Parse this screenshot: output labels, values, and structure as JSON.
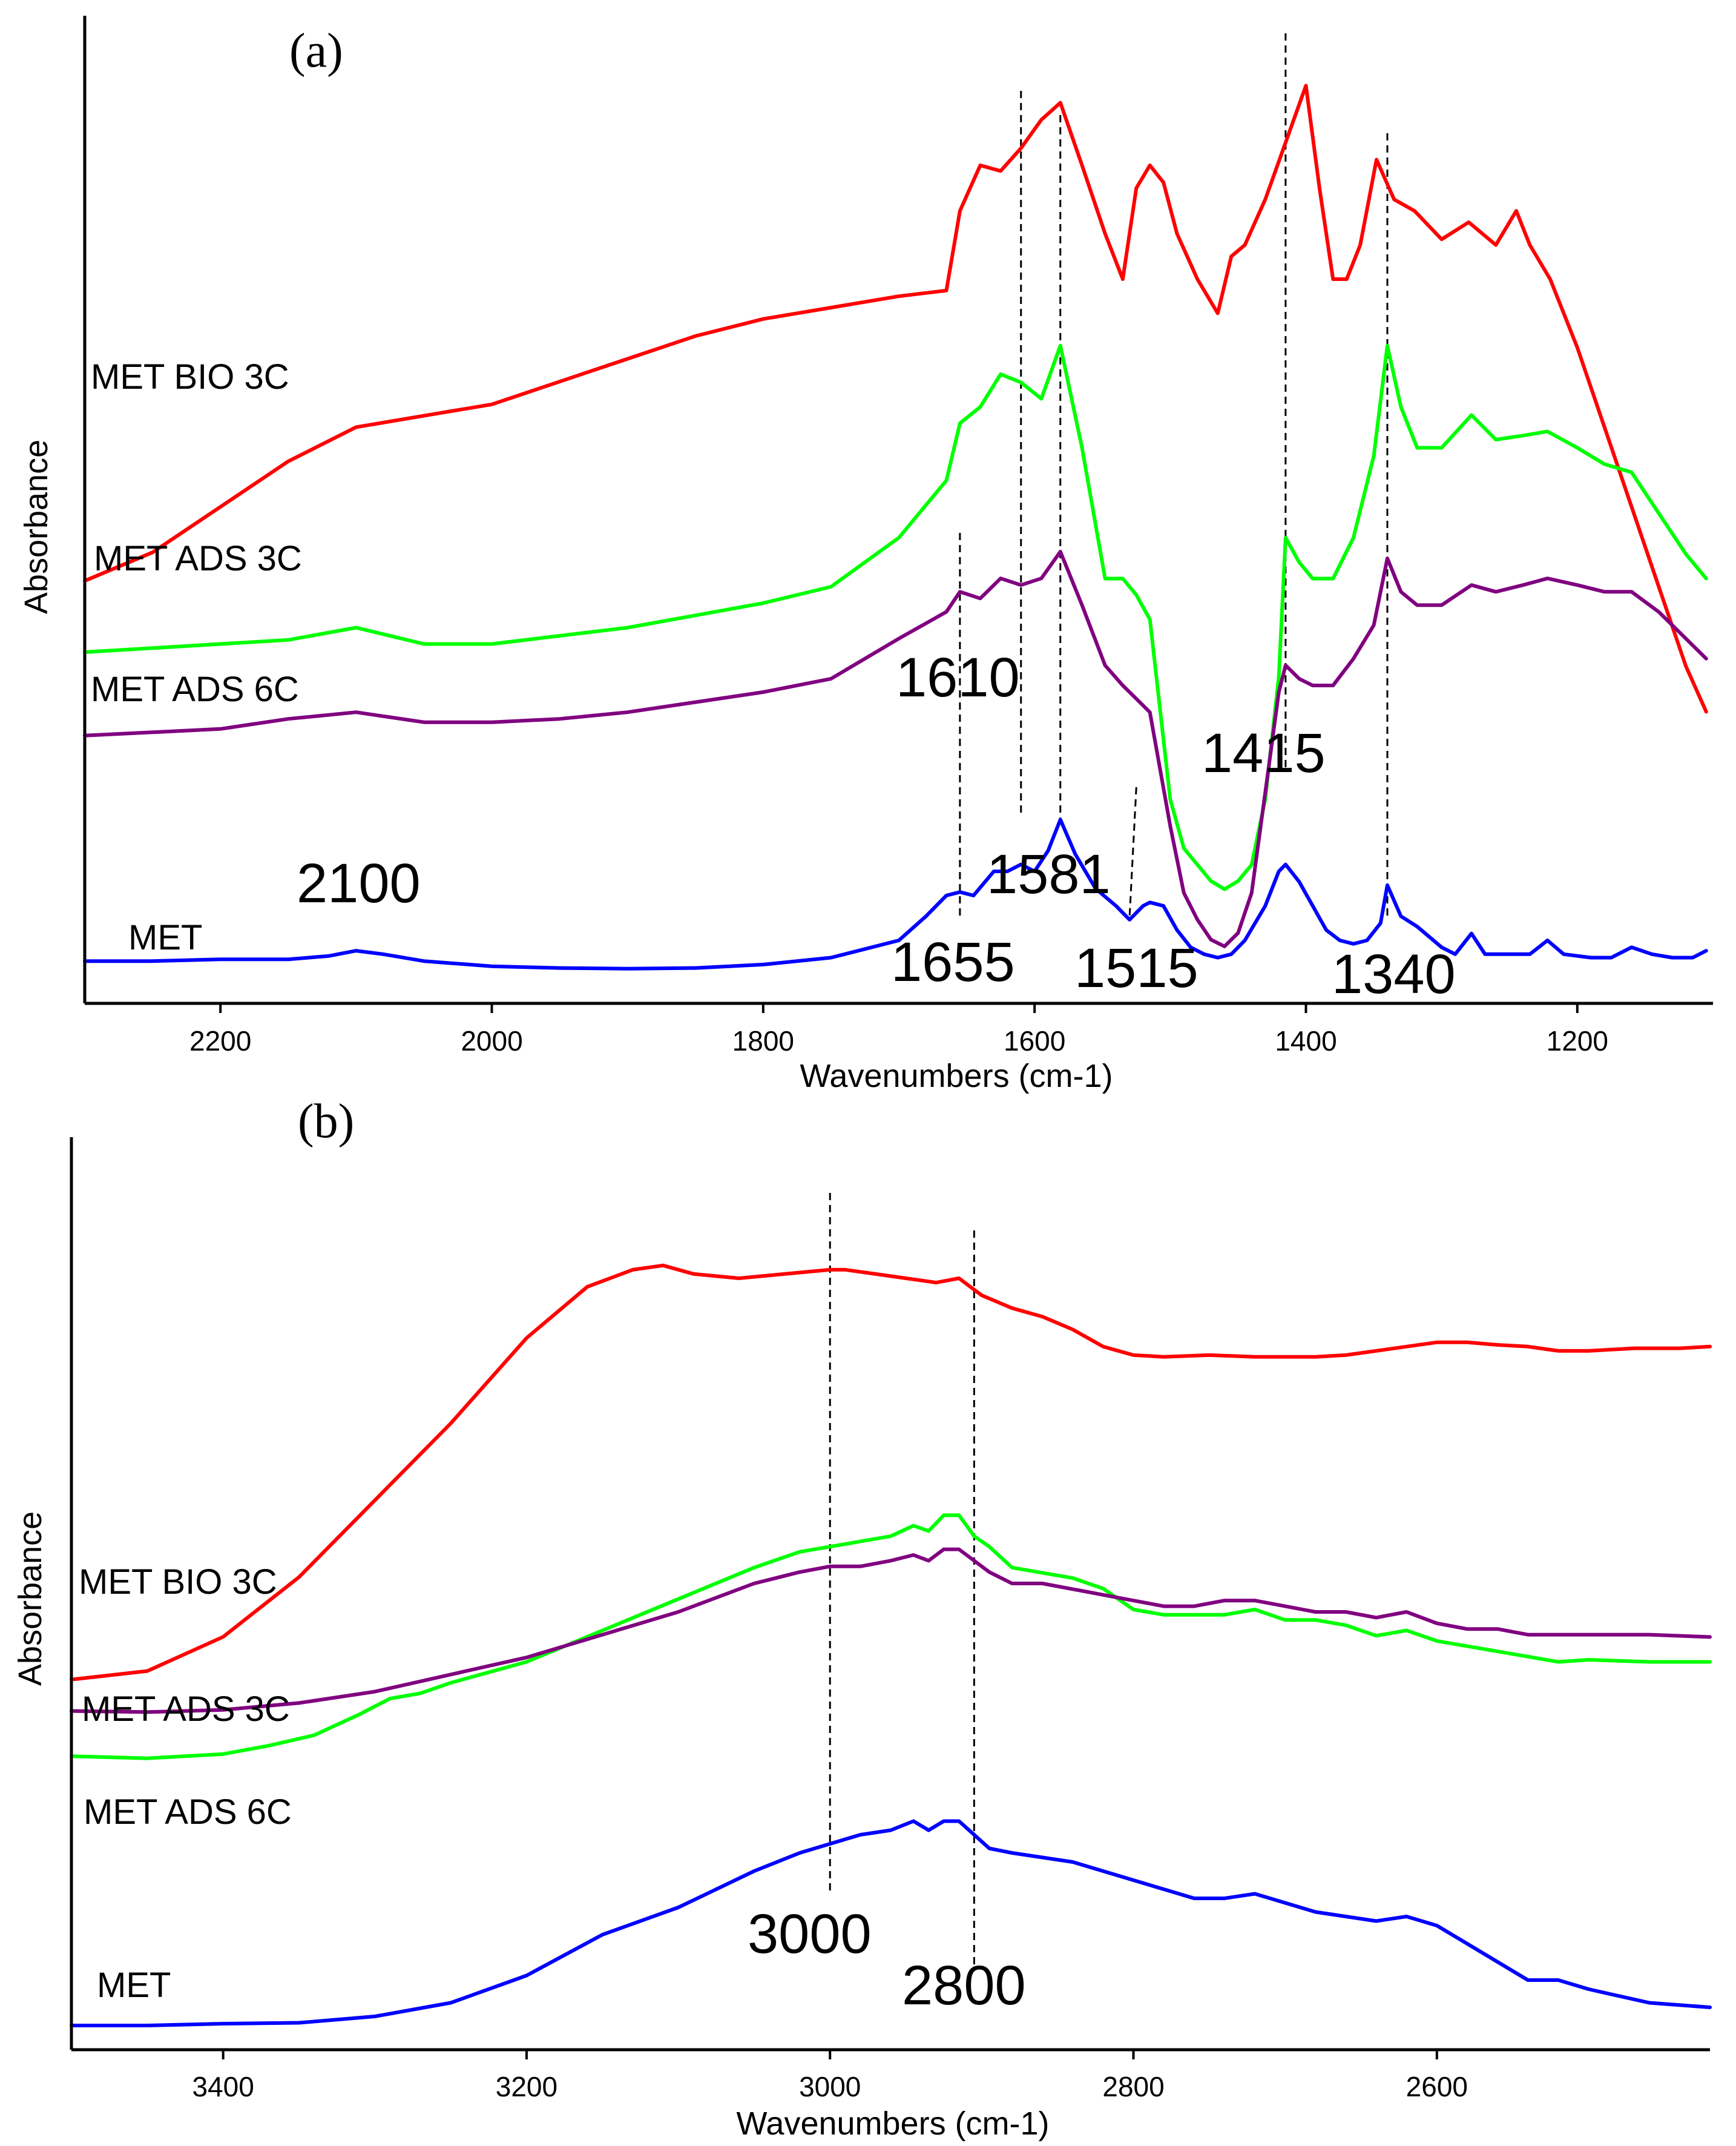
{
  "chart_data": [
    {
      "type": "line",
      "panel_label": "(a)",
      "xlabel": "Wavenumbers (cm-1)",
      "ylabel": "Absorbance",
      "xlim": [
        2300,
        1100
      ],
      "ylim": [
        0,
        1
      ],
      "x_ticks": [
        2200,
        2000,
        1800,
        1600,
        1400,
        1200
      ],
      "series": [
        {
          "name": "MET BIO 3C",
          "color": "#ff0000",
          "x": [
            2300,
            2250,
            2200,
            2150,
            2100,
            2050,
            2000,
            1950,
            1900,
            1850,
            1800,
            1750,
            1700,
            1665,
            1655,
            1640,
            1625,
            1610,
            1595,
            1581,
            1565,
            1548,
            1535,
            1525,
            1515,
            1505,
            1495,
            1480,
            1465,
            1455,
            1445,
            1430,
            1415,
            1400,
            1390,
            1380,
            1370,
            1360,
            1348,
            1335,
            1320,
            1300,
            1280,
            1260,
            1245,
            1235,
            1220,
            1200,
            1180,
            1160,
            1140,
            1120,
            1105
          ],
          "values": [
            0.535,
            0.56,
            0.6,
            0.64,
            0.67,
            0.68,
            0.69,
            0.71,
            0.73,
            0.75,
            0.765,
            0.775,
            0.785,
            0.79,
            0.86,
            0.9,
            0.895,
            0.915,
            0.94,
            0.955,
            0.9,
            0.84,
            0.8,
            0.88,
            0.9,
            0.885,
            0.84,
            0.8,
            0.77,
            0.82,
            0.83,
            0.87,
            0.92,
            0.97,
            0.88,
            0.8,
            0.8,
            0.83,
            0.905,
            0.87,
            0.86,
            0.835,
            0.85,
            0.83,
            0.86,
            0.83,
            0.8,
            0.74,
            0.67,
            0.6,
            0.53,
            0.46,
            0.42
          ]
        },
        {
          "name": "MET ADS 3C",
          "color": "#00ff00",
          "x": [
            2300,
            2250,
            2200,
            2150,
            2100,
            2050,
            2000,
            1950,
            1900,
            1850,
            1800,
            1750,
            1700,
            1665,
            1655,
            1640,
            1625,
            1610,
            1595,
            1581,
            1565,
            1548,
            1535,
            1525,
            1515,
            1500,
            1490,
            1480,
            1470,
            1460,
            1450,
            1440,
            1430,
            1420,
            1415,
            1405,
            1395,
            1380,
            1365,
            1350,
            1340,
            1330,
            1318,
            1300,
            1278,
            1260,
            1240,
            1222,
            1200,
            1180,
            1160,
            1140,
            1120,
            1105
          ],
          "values": [
            0.38,
            0.385,
            0.39,
            0.395,
            0.41,
            0.39,
            0.39,
            0.4,
            0.41,
            0.425,
            0.44,
            0.46,
            0.52,
            0.59,
            0.66,
            0.68,
            0.72,
            0.71,
            0.69,
            0.755,
            0.63,
            0.47,
            0.47,
            0.45,
            0.42,
            0.2,
            0.14,
            0.12,
            0.1,
            0.09,
            0.1,
            0.12,
            0.2,
            0.35,
            0.52,
            0.49,
            0.47,
            0.47,
            0.52,
            0.62,
            0.755,
            0.68,
            0.63,
            0.63,
            0.67,
            0.64,
            0.645,
            0.65,
            0.63,
            0.61,
            0.6,
            0.55,
            0.5,
            0.47
          ]
        },
        {
          "name": "MET ADS 6C",
          "color": "#800080",
          "x": [
            2300,
            2250,
            2200,
            2150,
            2100,
            2050,
            2000,
            1950,
            1900,
            1850,
            1800,
            1750,
            1700,
            1665,
            1655,
            1640,
            1625,
            1610,
            1595,
            1581,
            1565,
            1548,
            1535,
            1525,
            1515,
            1500,
            1490,
            1480,
            1470,
            1460,
            1450,
            1440,
            1430,
            1420,
            1415,
            1405,
            1395,
            1380,
            1365,
            1350,
            1340,
            1330,
            1318,
            1300,
            1278,
            1260,
            1240,
            1222,
            1200,
            1180,
            1160,
            1140,
            1120,
            1105
          ],
          "values": [
            0.335,
            0.34,
            0.345,
            0.36,
            0.37,
            0.355,
            0.355,
            0.36,
            0.37,
            0.385,
            0.4,
            0.42,
            0.48,
            0.52,
            0.55,
            0.54,
            0.57,
            0.56,
            0.57,
            0.61,
            0.53,
            0.44,
            0.41,
            0.39,
            0.37,
            0.2,
            0.1,
            0.06,
            0.03,
            0.02,
            0.04,
            0.1,
            0.25,
            0.4,
            0.44,
            0.42,
            0.41,
            0.41,
            0.45,
            0.5,
            0.6,
            0.55,
            0.53,
            0.53,
            0.56,
            0.55,
            0.56,
            0.57,
            0.56,
            0.55,
            0.55,
            0.52,
            0.48,
            0.45
          ]
        },
        {
          "name": "MET",
          "color": "#0000ff",
          "x": [
            2300,
            2250,
            2200,
            2150,
            2120,
            2100,
            2080,
            2050,
            2000,
            1950,
            1900,
            1850,
            1800,
            1750,
            1700,
            1680,
            1665,
            1655,
            1645,
            1630,
            1620,
            1610,
            1600,
            1590,
            1581,
            1570,
            1555,
            1540,
            1530,
            1520,
            1515,
            1505,
            1495,
            1485,
            1475,
            1465,
            1455,
            1445,
            1430,
            1420,
            1415,
            1405,
            1395,
            1385,
            1375,
            1365,
            1355,
            1345,
            1340,
            1330,
            1318,
            1300,
            1290,
            1278,
            1268,
            1250,
            1235,
            1222,
            1210,
            1190,
            1175,
            1160,
            1145,
            1130,
            1115,
            1105
          ],
          "values": [
            0.04,
            0.04,
            0.045,
            0.045,
            0.055,
            0.07,
            0.06,
            0.04,
            0.025,
            0.02,
            0.018,
            0.02,
            0.03,
            0.05,
            0.1,
            0.17,
            0.23,
            0.24,
            0.23,
            0.3,
            0.3,
            0.32,
            0.3,
            0.36,
            0.45,
            0.35,
            0.25,
            0.2,
            0.16,
            0.2,
            0.21,
            0.2,
            0.13,
            0.08,
            0.06,
            0.05,
            0.06,
            0.1,
            0.2,
            0.3,
            0.32,
            0.27,
            0.2,
            0.13,
            0.1,
            0.09,
            0.1,
            0.15,
            0.26,
            0.17,
            0.14,
            0.08,
            0.06,
            0.12,
            0.06,
            0.06,
            0.06,
            0.1,
            0.06,
            0.05,
            0.05,
            0.08,
            0.06,
            0.05,
            0.05,
            0.07
          ]
        }
      ],
      "annotations": [
        {
          "text": "2100",
          "x": 2100
        },
        {
          "text": "1610",
          "x": 1610
        },
        {
          "text": "1655",
          "x": 1655
        },
        {
          "text": "1581",
          "x": 1581
        },
        {
          "text": "1515",
          "x": 1515
        },
        {
          "text": "1415",
          "x": 1415
        },
        {
          "text": "1340",
          "x": 1340
        }
      ],
      "guide_lines": [
        1655,
        1610,
        1581,
        1515,
        1415,
        1340
      ]
    },
    {
      "type": "line",
      "panel_label": "(b)",
      "xlabel": "Wavenumbers (cm-1)",
      "ylabel": "Absorbance",
      "xlim": [
        3500,
        2420
      ],
      "ylim": [
        0,
        1
      ],
      "x_ticks": [
        3400,
        3200,
        3000,
        2800,
        2600
      ],
      "series": [
        {
          "name": "MET BIO 3C",
          "color": "#ff0000",
          "x": [
            3500,
            3450,
            3400,
            3350,
            3300,
            3250,
            3200,
            3160,
            3130,
            3110,
            3090,
            3060,
            3030,
            3000,
            2990,
            2970,
            2950,
            2930,
            2915,
            2900,
            2880,
            2860,
            2840,
            2820,
            2800,
            2780,
            2750,
            2720,
            2700,
            2680,
            2660,
            2640,
            2620,
            2600,
            2580,
            2560,
            2540,
            2520,
            2500,
            2470,
            2440,
            2420
          ],
          "values": [
            0.43,
            0.44,
            0.48,
            0.55,
            0.64,
            0.73,
            0.83,
            0.89,
            0.91,
            0.915,
            0.905,
            0.9,
            0.905,
            0.91,
            0.91,
            0.905,
            0.9,
            0.895,
            0.9,
            0.88,
            0.865,
            0.855,
            0.84,
            0.82,
            0.81,
            0.808,
            0.81,
            0.808,
            0.808,
            0.808,
            0.81,
            0.815,
            0.82,
            0.825,
            0.825,
            0.822,
            0.82,
            0.815,
            0.815,
            0.818,
            0.818,
            0.82
          ]
        },
        {
          "name": "MET ADS 3C",
          "color": "#00ff00",
          "x": [
            3500,
            3450,
            3400,
            3370,
            3340,
            3310,
            3290,
            3270,
            3250,
            3200,
            3150,
            3100,
            3050,
            3020,
            3000,
            2980,
            2960,
            2945,
            2935,
            2925,
            2915,
            2905,
            2895,
            2880,
            2860,
            2840,
            2820,
            2800,
            2780,
            2760,
            2740,
            2720,
            2700,
            2680,
            2660,
            2640,
            2620,
            2600,
            2580,
            2560,
            2540,
            2520,
            2500,
            2460,
            2420
          ],
          "values": [
            0.26,
            0.258,
            0.262,
            0.27,
            0.28,
            0.3,
            0.315,
            0.32,
            0.33,
            0.35,
            0.38,
            0.41,
            0.44,
            0.455,
            0.46,
            0.465,
            0.47,
            0.48,
            0.475,
            0.49,
            0.49,
            0.47,
            0.46,
            0.44,
            0.435,
            0.43,
            0.42,
            0.4,
            0.395,
            0.395,
            0.395,
            0.4,
            0.39,
            0.39,
            0.385,
            0.375,
            0.38,
            0.37,
            0.365,
            0.36,
            0.355,
            0.35,
            0.352,
            0.35,
            0.35
          ]
        },
        {
          "name": "MET ADS 6C",
          "color": "#800080",
          "x": [
            3500,
            3450,
            3400,
            3350,
            3300,
            3250,
            3200,
            3150,
            3100,
            3050,
            3020,
            3000,
            2980,
            2960,
            2945,
            2935,
            2925,
            2915,
            2905,
            2895,
            2880,
            2860,
            2840,
            2820,
            2800,
            2780,
            2760,
            2740,
            2720,
            2700,
            2680,
            2660,
            2640,
            2620,
            2600,
            2580,
            2560,
            2540,
            2520,
            2500,
            2460,
            2420
          ],
          "values": [
            0.263,
            0.262,
            0.264,
            0.27,
            0.28,
            0.295,
            0.31,
            0.33,
            0.35,
            0.375,
            0.385,
            0.39,
            0.39,
            0.395,
            0.4,
            0.395,
            0.405,
            0.405,
            0.395,
            0.385,
            0.375,
            0.375,
            0.37,
            0.365,
            0.36,
            0.355,
            0.355,
            0.36,
            0.36,
            0.355,
            0.35,
            0.35,
            0.345,
            0.35,
            0.34,
            0.335,
            0.335,
            0.33,
            0.33,
            0.33,
            0.33,
            0.328
          ]
        },
        {
          "name": "MET",
          "color": "#0000ff",
          "x": [
            3500,
            3450,
            3400,
            3350,
            3300,
            3250,
            3200,
            3150,
            3100,
            3050,
            3020,
            3000,
            2980,
            2960,
            2945,
            2935,
            2925,
            2915,
            2905,
            2895,
            2880,
            2860,
            2840,
            2820,
            2800,
            2780,
            2760,
            2740,
            2720,
            2700,
            2680,
            2660,
            2640,
            2620,
            2600,
            2580,
            2560,
            2540,
            2520,
            2500,
            2460,
            2420
          ],
          "values": [
            0.03,
            0.03,
            0.032,
            0.033,
            0.04,
            0.055,
            0.085,
            0.13,
            0.16,
            0.2,
            0.22,
            0.23,
            0.24,
            0.245,
            0.255,
            0.245,
            0.255,
            0.255,
            0.24,
            0.225,
            0.22,
            0.215,
            0.21,
            0.2,
            0.19,
            0.18,
            0.17,
            0.17,
            0.175,
            0.165,
            0.155,
            0.15,
            0.145,
            0.15,
            0.14,
            0.12,
            0.1,
            0.08,
            0.08,
            0.07,
            0.055,
            0.05
          ]
        }
      ],
      "annotations": [
        {
          "text": "3000",
          "x": 3000
        },
        {
          "text": "2800",
          "x": 2800
        }
      ],
      "guide_lines": [
        3000,
        2905
      ]
    }
  ]
}
